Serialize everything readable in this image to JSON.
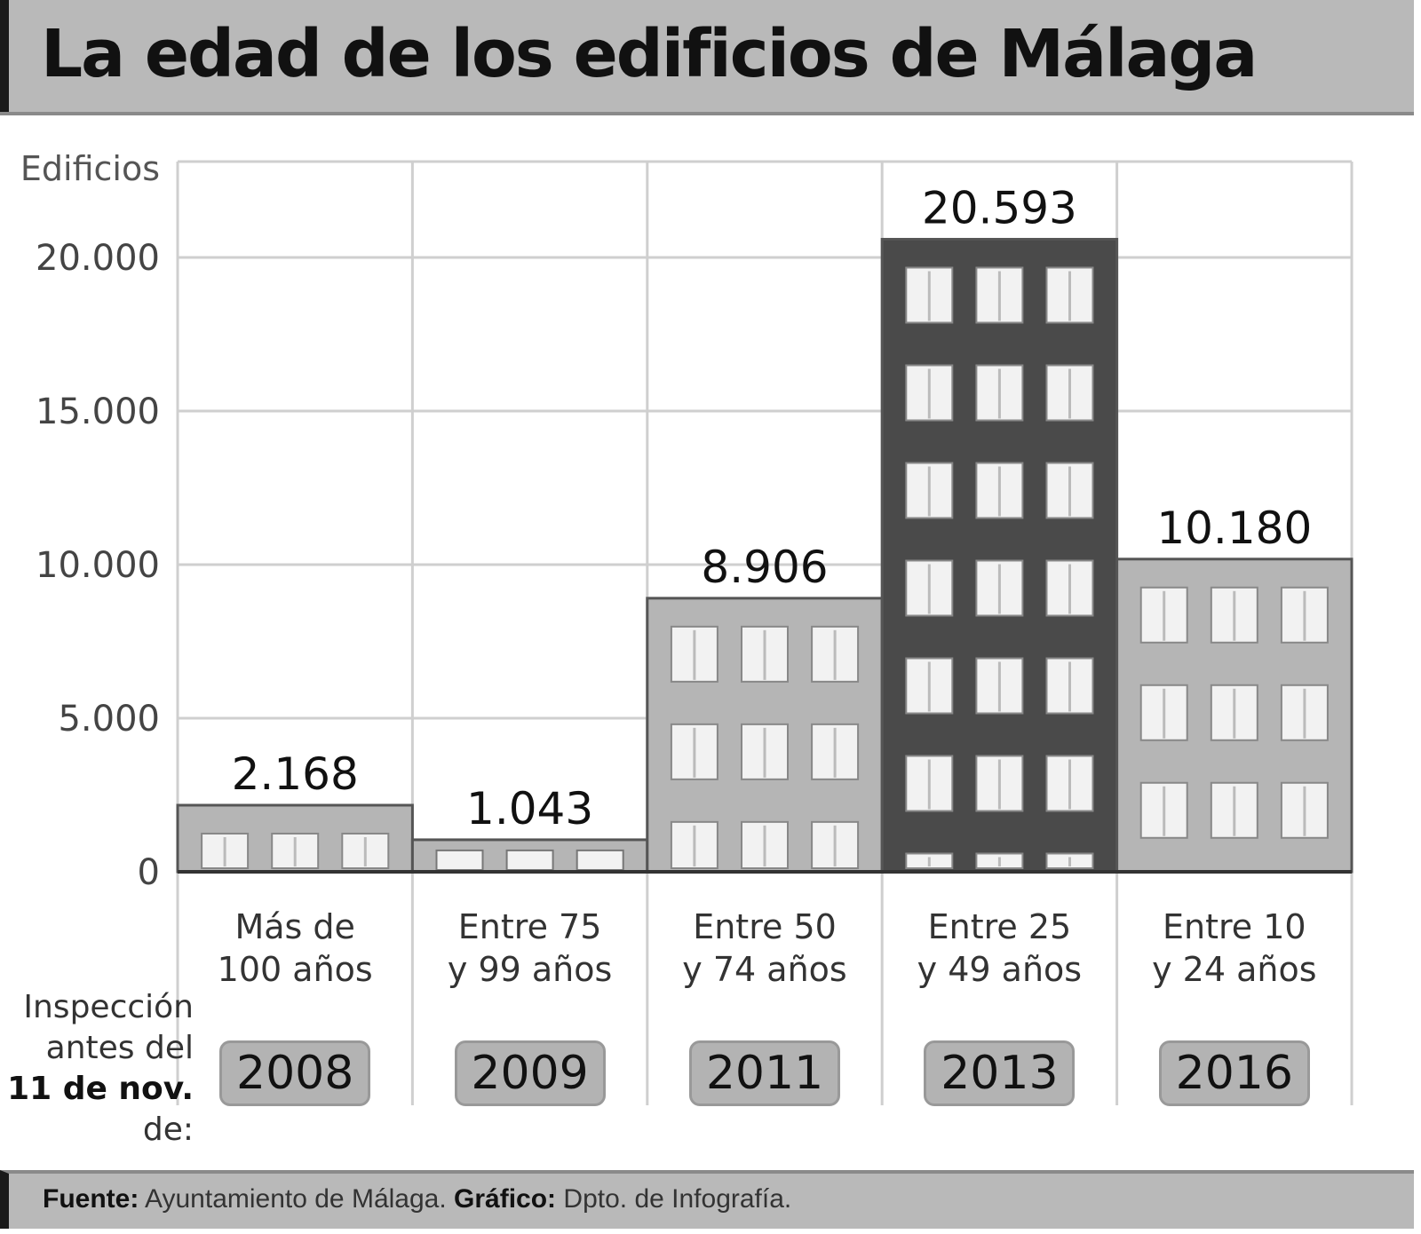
{
  "title": "La edad de los edificios de Málaga",
  "footer": {
    "source_label": "Fuente:",
    "source_value": "Ayuntamiento de Málaga.",
    "graphic_label": "Gráfico:",
    "graphic_value": "Dpto. de Infografía."
  },
  "inspection": {
    "line1": "Inspección",
    "line2": "antes del",
    "line3": "11 de nov.",
    "line4": "de:"
  },
  "colors": {
    "bar_light": "#b5b5b5",
    "bar_dark": "#4a4a4a",
    "window": "#f2f2f2",
    "grid": "#cfcfcf"
  },
  "chart_data": {
    "type": "bar",
    "ylabel": "Edificios",
    "ylim": [
      0,
      23000
    ],
    "yticks": [
      0,
      5000,
      10000,
      15000,
      20000
    ],
    "ytick_labels": [
      "0",
      "5.000",
      "10.000",
      "15.000",
      "20.000"
    ],
    "grid": true,
    "categories": [
      {
        "line1": "Más de",
        "line2": "100 años",
        "year": "2008",
        "value": 2168,
        "label": "2.168",
        "shade": "light"
      },
      {
        "line1": "Entre 75",
        "line2": "y 99 años",
        "year": "2009",
        "value": 1043,
        "label": "1.043",
        "shade": "light"
      },
      {
        "line1": "Entre 50",
        "line2": "y 74 años",
        "year": "2011",
        "value": 8906,
        "label": "8.906",
        "shade": "light"
      },
      {
        "line1": "Entre 25",
        "line2": "y 49 años",
        "year": "2013",
        "value": 20593,
        "label": "20.593",
        "shade": "dark"
      },
      {
        "line1": "Entre 10",
        "line2": "y 24 años",
        "year": "2016",
        "value": 10180,
        "label": "10.180",
        "shade": "light"
      }
    ]
  }
}
